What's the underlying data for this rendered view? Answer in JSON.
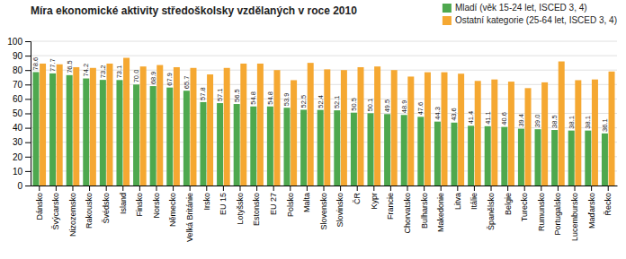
{
  "chart_data": {
    "type": "bar",
    "title": "Míra ekonomické aktivity středoškolsky vzdělaných v roce 2010",
    "categories": [
      "Dánsko",
      "Švýcarsko",
      "Nizozemsko",
      "Rakousko",
      "Švédsko",
      "Island",
      "Finsko",
      "Norsko",
      "Německo",
      "Velká Británie",
      "Irsko",
      "EU 15",
      "Lotyšsko",
      "Estonsko",
      "EU 27",
      "Polsko",
      "Malta",
      "Slovensko",
      "Slovinsko",
      "ČR",
      "Kypr",
      "Francie",
      "Chorvatsko",
      "Bulharsko",
      "Makedonie",
      "Litva",
      "Itálie",
      "Španělsko",
      "Belgie",
      "Turecko",
      "Rumunsko",
      "Portugalsko",
      "Lucembursko",
      "Maďarsko",
      "Řecko"
    ],
    "series": [
      {
        "name": "Mladí (věk 15-24 let, ISCED 3, 4)",
        "color": "#4ea84e",
        "values": [
          78.6,
          77.7,
          76.5,
          74.2,
          73.2,
          73.1,
          70.0,
          68.9,
          67.9,
          65.7,
          57.8,
          57.1,
          56.5,
          54.8,
          54.8,
          53.9,
          52.5,
          52.4,
          52.1,
          50.5,
          50.1,
          49.5,
          48.9,
          47.6,
          44.3,
          43.6,
          41.4,
          41.1,
          40.6,
          39.4,
          39.0,
          38.5,
          38.1,
          38.1,
          36.1
        ],
        "value_labels": [
          "78.6",
          "77.7",
          "76.5",
          "74.2",
          "73.2",
          "73.1",
          "70.0",
          "68.9",
          "67.9",
          "65.7",
          "57.8",
          "57.1",
          "56.5",
          "54.8",
          "54.8",
          "53.9",
          "52.5",
          "52.4",
          "52.1",
          "50.5",
          "50.1",
          "49.5",
          "48.9",
          "47.6",
          "44.3",
          "43.6",
          "41.4",
          "41.1",
          "40.6",
          "39.4",
          "39.0",
          "38.5",
          "38.1",
          "38.1",
          "36.1"
        ],
        "data_labels": true
      },
      {
        "name": "Ostatní kategorie (25-64 let, ISCED 3, 4)",
        "color": "#f5a832",
        "values": [
          84.5,
          84.0,
          82.0,
          81.5,
          84.5,
          88.5,
          82.5,
          83.5,
          82.0,
          81.5,
          77.0,
          81.5,
          84.5,
          84.5,
          80.0,
          73.0,
          85.0,
          80.5,
          80.0,
          82.0,
          82.5,
          80.0,
          75.5,
          78.5,
          78.5,
          77.5,
          72.5,
          73.5,
          72.0,
          67.5,
          71.5,
          86.0,
          73.0,
          73.5,
          79.0
        ]
      }
    ],
    "ylim": [
      0,
      100
    ],
    "yticks": [
      0,
      10,
      20,
      30,
      40,
      50,
      60,
      70,
      80,
      90,
      100
    ],
    "grid": true,
    "legend": "upper right"
  }
}
